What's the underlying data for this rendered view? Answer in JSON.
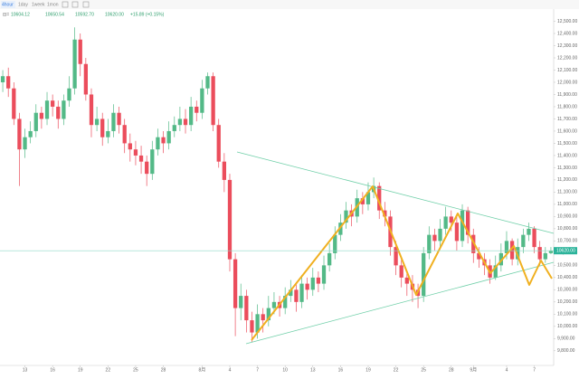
{
  "toolbar": [
    "4hour",
    "1day",
    "1week",
    "1mon"
  ],
  "header": {
    "open": "10604.12",
    "high": "10650.54",
    "low": "10592.70",
    "close": "10620.00",
    "change": "+15.89 (+0.15%)"
  },
  "price_label": "10620.00",
  "chart_data": {
    "type": "candlestick",
    "up_color": "#53b987",
    "down_color": "#eb4d5c",
    "ylim": [
      9680,
      12615
    ],
    "yticks": [
      {
        "value": 9800,
        "label": "9,800.00"
      },
      {
        "value": 9900,
        "label": "9,900.00"
      },
      {
        "value": 10000,
        "label": "10,000.00"
      },
      {
        "value": 10100,
        "label": "10,100.00"
      },
      {
        "value": 10200,
        "label": "10,200.00"
      },
      {
        "value": 10300,
        "label": "10,300.00"
      },
      {
        "value": 10400,
        "label": "10,400.00"
      },
      {
        "value": 10500,
        "label": "10,500.00"
      },
      {
        "value": 10600,
        "label": "10,600.00"
      },
      {
        "value": 10700,
        "label": "10,700.00"
      },
      {
        "value": 10800,
        "label": "10,800.00"
      },
      {
        "value": 10900,
        "label": "10,900.00"
      },
      {
        "value": 11000,
        "label": "11,000.00"
      },
      {
        "value": 11100,
        "label": "11,100.00"
      },
      {
        "value": 11200,
        "label": "11,200.00"
      },
      {
        "value": 11300,
        "label": "11,300.00"
      },
      {
        "value": 11400,
        "label": "11,400.00"
      },
      {
        "value": 11500,
        "label": "11,500.00"
      },
      {
        "value": 11600,
        "label": "11,600.00"
      },
      {
        "value": 11700,
        "label": "11,700.00"
      },
      {
        "value": 11800,
        "label": "11,800.00"
      },
      {
        "value": 11900,
        "label": "11,900.00"
      },
      {
        "value": 12000,
        "label": "12,000.00"
      },
      {
        "value": 12100,
        "label": "12,100.00"
      },
      {
        "value": 12200,
        "label": "12,200.00"
      },
      {
        "value": 12300,
        "label": "12,300.00"
      },
      {
        "value": 12400,
        "label": "12,400.00"
      },
      {
        "value": 12500,
        "label": "12,500.00"
      }
    ],
    "categories": [
      null,
      null,
      null,
      null,
      "13",
      null,
      null,
      null,
      null,
      "16",
      null,
      null,
      null,
      null,
      "19",
      null,
      null,
      null,
      null,
      "22",
      null,
      null,
      null,
      null,
      "25",
      null,
      null,
      null,
      null,
      "28",
      null,
      null,
      null,
      null,
      null,
      null,
      "8月",
      null,
      null,
      null,
      null,
      "4",
      null,
      null,
      null,
      null,
      "7",
      null,
      null,
      null,
      null,
      "10",
      null,
      null,
      null,
      null,
      "13",
      null,
      null,
      null,
      null,
      "16",
      null,
      null,
      null,
      null,
      "19",
      null,
      null,
      null,
      null,
      "22",
      null,
      null,
      null,
      null,
      "25",
      null,
      null,
      null,
      null,
      "28",
      null,
      null,
      null,
      "9月",
      null,
      null,
      null,
      null,
      null,
      "4",
      null,
      null,
      null,
      null,
      "7",
      null,
      null,
      null
    ],
    "open": [
      12000,
      12050,
      11950,
      11700,
      11450,
      11550,
      11600,
      11750,
      11700,
      11850,
      11800,
      11700,
      11850,
      11950,
      12350,
      12150,
      11900,
      11650,
      11700,
      11550,
      11600,
      11750,
      11650,
      11500,
      11450,
      11400,
      11350,
      11250,
      11450,
      11550,
      11500,
      11600,
      11650,
      11700,
      11650,
      11800,
      11750,
      11950,
      12050,
      11650,
      11350,
      11200,
      10550,
      10150,
      10250,
      10050,
      9950,
      10100,
      10050,
      10150,
      10200,
      10150,
      10250,
      10300,
      10200,
      10350,
      10300,
      10400,
      10350,
      10500,
      10600,
      10750,
      10850,
      10950,
      10900,
      11050,
      11000,
      11100,
      11150,
      10950,
      10900,
      10650,
      10500,
      10400,
      10350,
      10300,
      10250,
      10600,
      10750,
      10700,
      10800,
      10900,
      10850,
      10700,
      10950,
      10750,
      10600,
      10550,
      10500,
      10400,
      10500,
      10600,
      10700,
      10550,
      10650,
      10750,
      10800,
      10650,
      10550,
      10600
    ],
    "high": [
      12100,
      12120,
      12000,
      11750,
      11620,
      11680,
      11820,
      11800,
      11920,
      11900,
      11850,
      11900,
      12050,
      12450,
      12400,
      12200,
      11950,
      11800,
      11750,
      11700,
      11820,
      11800,
      11700,
      11580,
      11520,
      11480,
      11400,
      11520,
      11620,
      11600,
      11680,
      11720,
      11800,
      11780,
      11880,
      11850,
      12020,
      12080,
      12080,
      11700,
      11420,
      11250,
      10600,
      10350,
      10300,
      10120,
      10180,
      10150,
      10250,
      10280,
      10250,
      10320,
      10380,
      10350,
      10420,
      10400,
      10480,
      10450,
      10580,
      10680,
      10820,
      10920,
      11020,
      11000,
      11120,
      11100,
      11180,
      11220,
      11180,
      11020,
      10950,
      10700,
      10550,
      10450,
      10420,
      10350,
      10650,
      10820,
      10800,
      10880,
      10980,
      10950,
      10900,
      11000,
      10980,
      10800,
      10650,
      10600,
      10550,
      10580,
      10680,
      10780,
      10720,
      10720,
      10800,
      10850,
      10820,
      10700,
      10650,
      10650
    ],
    "low": [
      11920,
      11880,
      11650,
      11150,
      11380,
      11500,
      11550,
      11620,
      11650,
      11720,
      11620,
      11650,
      11800,
      11900,
      12050,
      11850,
      11550,
      11600,
      11480,
      11500,
      11550,
      11580,
      11420,
      11350,
      11320,
      11250,
      11150,
      11200,
      11400,
      11420,
      11450,
      11550,
      11600,
      11580,
      11600,
      11680,
      11700,
      11900,
      11600,
      11300,
      11100,
      10450,
      9920,
      10050,
      9950,
      9870,
      9900,
      9950,
      10000,
      10100,
      10080,
      10100,
      10200,
      10120,
      10150,
      10220,
      10250,
      10280,
      10300,
      10450,
      10550,
      10700,
      10800,
      10820,
      10850,
      10920,
      10950,
      11050,
      10880,
      10820,
      10580,
      10420,
      10320,
      10250,
      10200,
      10150,
      10200,
      10550,
      10620,
      10650,
      10750,
      10780,
      10620,
      10650,
      10680,
      10520,
      10480,
      10420,
      10350,
      10380,
      10450,
      10550,
      10500,
      10500,
      10600,
      10700,
      10600,
      10500,
      10520,
      10592
    ],
    "close": [
      12050,
      11950,
      11700,
      11450,
      11550,
      11600,
      11750,
      11700,
      11850,
      11800,
      11700,
      11850,
      11950,
      12350,
      12150,
      11900,
      11650,
      11700,
      11550,
      11600,
      11750,
      11650,
      11500,
      11450,
      11400,
      11350,
      11250,
      11450,
      11550,
      11500,
      11600,
      11650,
      11700,
      11650,
      11800,
      11750,
      11950,
      12050,
      11650,
      11350,
      11200,
      10550,
      10150,
      10250,
      10050,
      9950,
      10100,
      10050,
      10150,
      10200,
      10150,
      10250,
      10300,
      10200,
      10350,
      10300,
      10400,
      10350,
      10500,
      10600,
      10750,
      10850,
      10950,
      10900,
      11050,
      11000,
      11100,
      11150,
      10950,
      10900,
      10650,
      10500,
      10400,
      10350,
      10300,
      10250,
      10600,
      10750,
      10700,
      10800,
      10900,
      10850,
      10700,
      10950,
      10750,
      10600,
      10550,
      10500,
      10400,
      10500,
      10600,
      10700,
      10550,
      10650,
      10750,
      10800,
      10650,
      10550,
      10600,
      10620
    ]
  }
}
